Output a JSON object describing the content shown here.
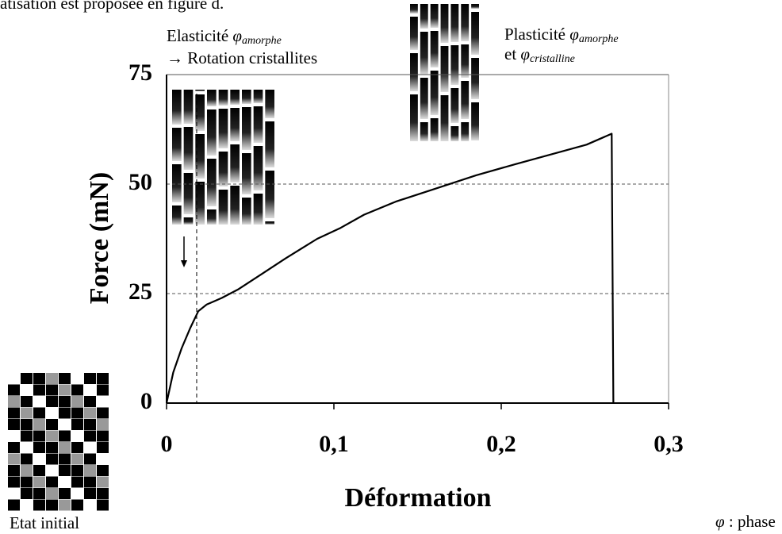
{
  "header_text": "atisation est proposée en figure d.",
  "chart_data": {
    "type": "line",
    "ylabel": "Force (mN)",
    "xlabel": "Déformation",
    "xlim": [
      0,
      0.3
    ],
    "ylim": [
      0,
      75
    ],
    "xticks": [
      {
        "value": 0,
        "label": "0"
      },
      {
        "value": 0.1,
        "label": "0,1"
      },
      {
        "value": 0.2,
        "label": "0,2"
      },
      {
        "value": 0.3,
        "label": "0,3"
      }
    ],
    "yticks": [
      0,
      25,
      50,
      75
    ],
    "grid": true,
    "reference_x": 0.018,
    "x": [
      0,
      0.004,
      0.009,
      0.014,
      0.019,
      0.024,
      0.033,
      0.043,
      0.057,
      0.071,
      0.09,
      0.104,
      0.118,
      0.137,
      0.161,
      0.185,
      0.208,
      0.232,
      0.251,
      0.266,
      0.267
    ],
    "series": [
      {
        "name": "Force",
        "color": "#000000",
        "values": [
          0,
          7,
          12.5,
          17,
          21,
          22.5,
          24,
          26,
          29.5,
          33,
          37.5,
          40,
          43,
          46,
          49,
          52,
          54.5,
          57,
          59,
          61.5,
          0
        ]
      }
    ],
    "annotations": [
      {
        "text": "Elasticité ",
        "symbol": "φ",
        "subscript": "amorphe"
      },
      {
        "text": "→ Rotation cristallites"
      },
      {
        "text": "Plasticité ",
        "symbol": "φ",
        "subscript": "amorphe"
      },
      {
        "text": "et ",
        "symbol": "φ",
        "subscript": "cristalline"
      },
      {
        "text": "Etat initial"
      },
      {
        "symbol": "φ",
        "text": " : phase"
      }
    ]
  }
}
